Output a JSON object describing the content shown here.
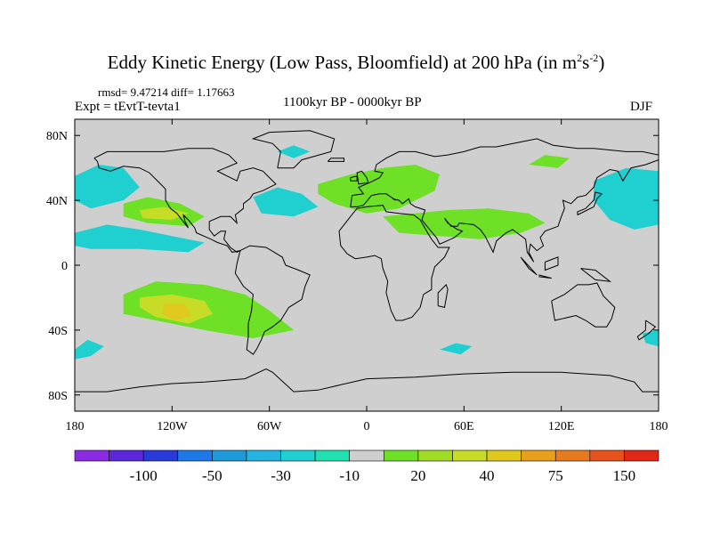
{
  "title_main": "Eddy Kinetic Energy (Low Pass, Bloomfield) at 200 hPa (in m",
  "title_sup1": "2",
  "title_mid": "s",
  "title_sup2": "-2",
  "title_end": ")",
  "rmsd_text": "rmsd= 9.47214 diff= 1.17663",
  "expt_text": "Expt = tEvtT-tevta1",
  "period_text": "1100kyr BP - 0000kyr BP",
  "season_text": "DJF",
  "colors": {
    "background": "#ffffff",
    "land_ocean_neutral": "#cfcfcf",
    "coastline": "#000000"
  },
  "chart_data": {
    "type": "heatmap",
    "projection": "cylindrical-equidistant",
    "lon_range": [
      -180,
      180
    ],
    "lat_range": [
      -90,
      90
    ],
    "x_tick_labels": [
      "180",
      "120W",
      "60W",
      "0",
      "60E",
      "120E",
      "180"
    ],
    "x_tick_values": [
      -180,
      -120,
      -60,
      0,
      60,
      120,
      180
    ],
    "y_tick_labels": [
      "80N",
      "40N",
      "0",
      "40S",
      "80S"
    ],
    "y_tick_values": [
      80,
      40,
      0,
      -40,
      -80
    ],
    "colorbar": {
      "colors": [
        "#8a2be2",
        "#5a28d8",
        "#2a3ad8",
        "#1e78e6",
        "#1e9ad8",
        "#24b4e0",
        "#20d0d0",
        "#20e0b0",
        "#cfcfcf",
        "#6ee026",
        "#a0dc26",
        "#c6dc26",
        "#e0c81e",
        "#e6a01e",
        "#e67a1e",
        "#e6521e",
        "#e02818"
      ],
      "labels": [
        "-100",
        "-50",
        "-30",
        "-10",
        "20",
        "40",
        "75",
        "150"
      ],
      "label_after_box": [
        1,
        3,
        5,
        7,
        9,
        11,
        13,
        15
      ]
    },
    "anomaly_regions": [
      {
        "color": "#20d0d0",
        "poly": [
          [
            -180,
            55
          ],
          [
            -165,
            62
          ],
          [
            -150,
            60
          ],
          [
            -140,
            48
          ],
          [
            -150,
            40
          ],
          [
            -170,
            35
          ],
          [
            -180,
            40
          ]
        ]
      },
      {
        "color": "#20d0d0",
        "poly": [
          [
            -180,
            20
          ],
          [
            -160,
            25
          ],
          [
            -140,
            22
          ],
          [
            -120,
            18
          ],
          [
            -100,
            14
          ],
          [
            -110,
            8
          ],
          [
            -140,
            10
          ],
          [
            -170,
            10
          ],
          [
            -180,
            12
          ]
        ]
      },
      {
        "color": "#6ee026",
        "poly": [
          [
            -150,
            38
          ],
          [
            -135,
            42
          ],
          [
            -115,
            38
          ],
          [
            -100,
            30
          ],
          [
            -110,
            24
          ],
          [
            -135,
            26
          ],
          [
            -150,
            30
          ]
        ]
      },
      {
        "color": "#c6dc26",
        "poly": [
          [
            -140,
            34
          ],
          [
            -125,
            36
          ],
          [
            -110,
            32
          ],
          [
            -120,
            28
          ],
          [
            -138,
            29
          ]
        ]
      },
      {
        "color": "#20d0d0",
        "poly": [
          [
            -70,
            42
          ],
          [
            -55,
            48
          ],
          [
            -40,
            44
          ],
          [
            -30,
            36
          ],
          [
            -45,
            30
          ],
          [
            -65,
            32
          ]
        ]
      },
      {
        "color": "#20d0d0",
        "poly": [
          [
            -55,
            70
          ],
          [
            -45,
            74
          ],
          [
            -35,
            70
          ],
          [
            -45,
            66
          ]
        ]
      },
      {
        "color": "#6ee026",
        "poly": [
          [
            -30,
            50
          ],
          [
            -10,
            56
          ],
          [
            10,
            60
          ],
          [
            30,
            62
          ],
          [
            45,
            56
          ],
          [
            42,
            46
          ],
          [
            30,
            40
          ],
          [
            20,
            35
          ],
          [
            0,
            32
          ],
          [
            -20,
            38
          ],
          [
            -30,
            44
          ]
        ]
      },
      {
        "color": "#6ee026",
        "poly": [
          [
            10,
            30
          ],
          [
            30,
            32
          ],
          [
            50,
            34
          ],
          [
            75,
            35
          ],
          [
            100,
            32
          ],
          [
            110,
            26
          ],
          [
            95,
            20
          ],
          [
            70,
            16
          ],
          [
            45,
            18
          ],
          [
            20,
            20
          ]
        ]
      },
      {
        "color": "#6ee026",
        "poly": [
          [
            100,
            62
          ],
          [
            110,
            68
          ],
          [
            125,
            66
          ],
          [
            118,
            60
          ]
        ]
      },
      {
        "color": "#20d0d0",
        "poly": [
          [
            140,
            52
          ],
          [
            160,
            60
          ],
          [
            180,
            58
          ],
          [
            180,
            25
          ],
          [
            165,
            22
          ],
          [
            150,
            28
          ],
          [
            140,
            40
          ]
        ]
      },
      {
        "color": "#6ee026",
        "poly": [
          [
            -150,
            -18
          ],
          [
            -130,
            -10
          ],
          [
            -100,
            -12
          ],
          [
            -75,
            -18
          ],
          [
            -60,
            -28
          ],
          [
            -45,
            -40
          ],
          [
            -70,
            -45
          ],
          [
            -100,
            -40
          ],
          [
            -130,
            -34
          ],
          [
            -150,
            -30
          ]
        ]
      },
      {
        "color": "#c6dc26",
        "poly": [
          [
            -140,
            -20
          ],
          [
            -120,
            -18
          ],
          [
            -100,
            -22
          ],
          [
            -95,
            -30
          ],
          [
            -110,
            -36
          ],
          [
            -130,
            -32
          ],
          [
            -140,
            -26
          ]
        ]
      },
      {
        "color": "#e0c81e",
        "poly": [
          [
            -125,
            -24
          ],
          [
            -112,
            -24
          ],
          [
            -108,
            -31
          ],
          [
            -118,
            -34
          ],
          [
            -126,
            -30
          ]
        ]
      },
      {
        "color": "#20d0d0",
        "poly": [
          [
            -180,
            -52
          ],
          [
            -172,
            -46
          ],
          [
            -162,
            -50
          ],
          [
            -170,
            -56
          ],
          [
            -180,
            -58
          ]
        ]
      },
      {
        "color": "#20d0d0",
        "poly": [
          [
            45,
            -52
          ],
          [
            55,
            -48
          ],
          [
            65,
            -50
          ],
          [
            58,
            -55
          ]
        ]
      },
      {
        "color": "#20d0d0",
        "poly": [
          [
            170,
            -42
          ],
          [
            180,
            -40
          ],
          [
            180,
            -50
          ],
          [
            172,
            -48
          ]
        ]
      }
    ]
  }
}
